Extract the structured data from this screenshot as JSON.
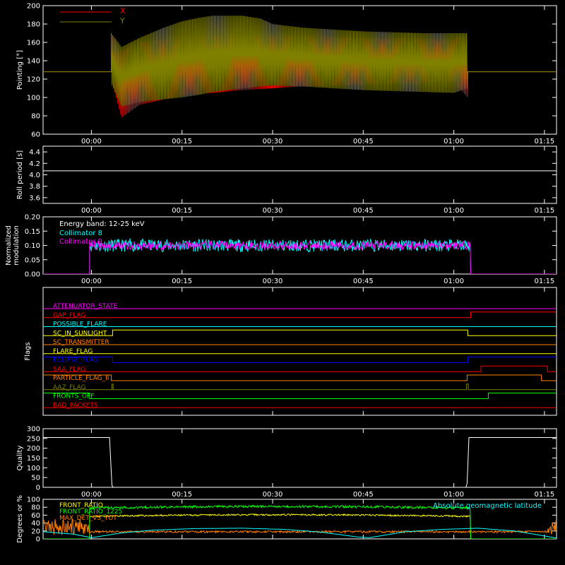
{
  "chart_data": [
    {
      "type": "line",
      "panel": "pointing",
      "ylabel": "Pointing [°]",
      "ylim": [
        60,
        200
      ],
      "yticks": [
        "60",
        "80",
        "100",
        "120",
        "140",
        "160",
        "180",
        "200"
      ],
      "xlim_min": [
        -8,
        77
      ],
      "xticks": [
        "00:00",
        "00:15",
        "00:30",
        "00:45",
        "01:00",
        "01:15"
      ],
      "legend": {
        "placement": "top-left",
        "entries": [
          {
            "name": "X",
            "color": "#ff0000"
          },
          {
            "name": "Y",
            "color": "#7f7f00"
          }
        ]
      },
      "series": [
        {
          "name": "X",
          "color": "#ff0000",
          "baseline": 128,
          "active_min": [
            3.3,
            62.3
          ],
          "envelope_min": [
            3.3,
            5,
            8,
            12,
            15,
            18,
            20,
            25,
            30,
            35,
            40,
            45,
            50,
            55,
            60,
            62.3
          ],
          "upper": [
            168,
            150,
            160,
            163,
            165,
            166,
            167,
            168,
            168,
            167,
            166,
            165,
            164,
            164,
            163,
            170
          ],
          "lower": [
            120,
            78,
            92,
            98,
            102,
            104,
            105,
            108,
            110,
            112,
            113,
            114,
            115,
            116,
            117,
            100
          ]
        },
        {
          "name": "Y",
          "color": "#7f7f00",
          "baseline": 128,
          "active_min": [
            3.3,
            62.3
          ],
          "envelope_min": [
            3.3,
            5,
            8,
            12,
            15,
            18,
            20,
            25,
            28,
            30,
            35,
            40,
            45,
            50,
            55,
            60,
            62.3
          ],
          "upper": [
            170,
            155,
            165,
            176,
            183,
            187,
            189,
            189,
            186,
            180,
            176,
            174,
            172,
            171,
            170,
            170,
            170
          ],
          "lower": [
            115,
            90,
            95,
            98,
            100,
            103,
            106,
            110,
            112,
            113,
            112,
            110,
            108,
            107,
            106,
            105,
            110
          ]
        }
      ]
    },
    {
      "type": "line",
      "panel": "roll",
      "ylabel": "Roll period [s]",
      "ylim": [
        3.5,
        4.5
      ],
      "yticks": [
        "3.6",
        "3.8",
        "4.0",
        "4.2",
        "4.4"
      ],
      "series": [
        {
          "color": "#ffffff",
          "constant": 4.07
        }
      ]
    },
    {
      "type": "line",
      "panel": "modulation",
      "ylabel": "Normalized modulation",
      "ylim": [
        0,
        0.2
      ],
      "yticks": [
        "0.00",
        "0.05",
        "0.10",
        "0.15",
        "0.20"
      ],
      "annotation": "Energy band: 12-25 keV",
      "series": [
        {
          "name": "Collimator 8",
          "color": "#00ffff",
          "active_min": [
            -0.3,
            62.8
          ],
          "mean": 0.1,
          "spread": 0.022
        },
        {
          "name": "Collimator 9",
          "color": "#ff00ff",
          "active_min": [
            -0.3,
            62.8
          ],
          "mean": 0.1,
          "spread": 0.015
        }
      ]
    },
    {
      "type": "line",
      "panel": "flags",
      "ylabel": "Flags",
      "flags": [
        {
          "name": "ATTENUATOR_STATE",
          "color": "#ff00ff",
          "transitions": []
        },
        {
          "name": "GAP_FLAG",
          "color": "#ff0000",
          "transitions": [
            [
              62.8,
              1
            ]
          ]
        },
        {
          "name": "POSSIBLE_FLARE",
          "color": "#00ffff",
          "transitions": []
        },
        {
          "name": "SC_IN_SUNLIGHT",
          "color": "#ffff00",
          "transitions": [
            [
              3.5,
              1
            ],
            [
              62.3,
              0
            ]
          ]
        },
        {
          "name": "SC_TRANSMITTER",
          "color": "#ff7f00",
          "transitions": []
        },
        {
          "name": "FLARE_FLAG",
          "color": "#ffff00",
          "transitions": []
        },
        {
          "name": "ECLIPSE_FLAG",
          "color": "#0000ff",
          "start": 1,
          "transitions": [
            [
              3.5,
              0
            ],
            [
              62.3,
              1
            ]
          ]
        },
        {
          "name": "SAA_FLAG",
          "color": "#ff0000",
          "transitions": [
            [
              64.5,
              1
            ],
            [
              75.5,
              0
            ]
          ]
        },
        {
          "name": "PARTICLE_FLAG_II",
          "color": "#ff7f00",
          "start": 1,
          "transitions": [
            [
              3.3,
              0
            ],
            [
              62.2,
              1
            ],
            [
              74.5,
              0
            ]
          ]
        },
        {
          "name": "AAZ_FLAG",
          "color": "#7f7f00",
          "transitions": [
            [
              3.4,
              1
            ],
            [
              3.6,
              0
            ],
            [
              62.1,
              1
            ],
            [
              62.4,
              0
            ]
          ]
        },
        {
          "name": "FRONTS_OFF",
          "color": "#00ff00",
          "start": 1,
          "transitions": [
            [
              -0.3,
              0
            ],
            [
              65.7,
              1
            ]
          ]
        },
        {
          "name": "BAD_PACKETS",
          "color": "#ff0000",
          "transitions": []
        }
      ]
    },
    {
      "type": "line",
      "panel": "quality",
      "ylabel": "Quality",
      "ylim": [
        0,
        300
      ],
      "yticks": [
        "0",
        "50",
        "100",
        "150",
        "200",
        "250",
        "300"
      ],
      "series": [
        {
          "color": "#ffffff",
          "values": [
            [
              -8,
              255
            ],
            [
              3.0,
              255
            ],
            [
              3.4,
              10
            ],
            [
              3.6,
              0
            ],
            [
              62.0,
              0
            ],
            [
              62.2,
              20
            ],
            [
              62.5,
              255
            ],
            [
              77,
              255
            ]
          ]
        }
      ]
    },
    {
      "type": "line",
      "panel": "ratios",
      "ylabel": "Degrees or %",
      "ylim": [
        0,
        100
      ],
      "yticks": [
        "0",
        "20",
        "40",
        "60",
        "80",
        "100"
      ],
      "annotation": "Absolute geomagnetic latitude",
      "series": [
        {
          "name": "FRONT_RATIO",
          "color": "#ffff00",
          "active_min": [
            -0.3,
            62.8
          ],
          "mean": 57,
          "spread": 2
        },
        {
          "name": "FRONT_RATIO_1225",
          "color": "#00ff00",
          "active_min": [
            -0.3,
            62.8
          ],
          "mean": 78,
          "spread": 3
        },
        {
          "name": "MAX_DET_VS_TOT",
          "color": "#ff7f00",
          "mean": 18,
          "spread": 2.5
        },
        {
          "name": "Absolute geomagnetic latitude",
          "color": "#00ffff",
          "values": [
            [
              -8,
              18
            ],
            [
              -3,
              12
            ],
            [
              0,
              3
            ],
            [
              5,
              15
            ],
            [
              10,
              22
            ],
            [
              17,
              26
            ],
            [
              25,
              27
            ],
            [
              32,
              24
            ],
            [
              38,
              17
            ],
            [
              44,
              5
            ],
            [
              46,
              3
            ],
            [
              52,
              18
            ],
            [
              58,
              24
            ],
            [
              64,
              27
            ],
            [
              70,
              20
            ],
            [
              74,
              10
            ],
            [
              77,
              2
            ]
          ]
        }
      ]
    }
  ]
}
